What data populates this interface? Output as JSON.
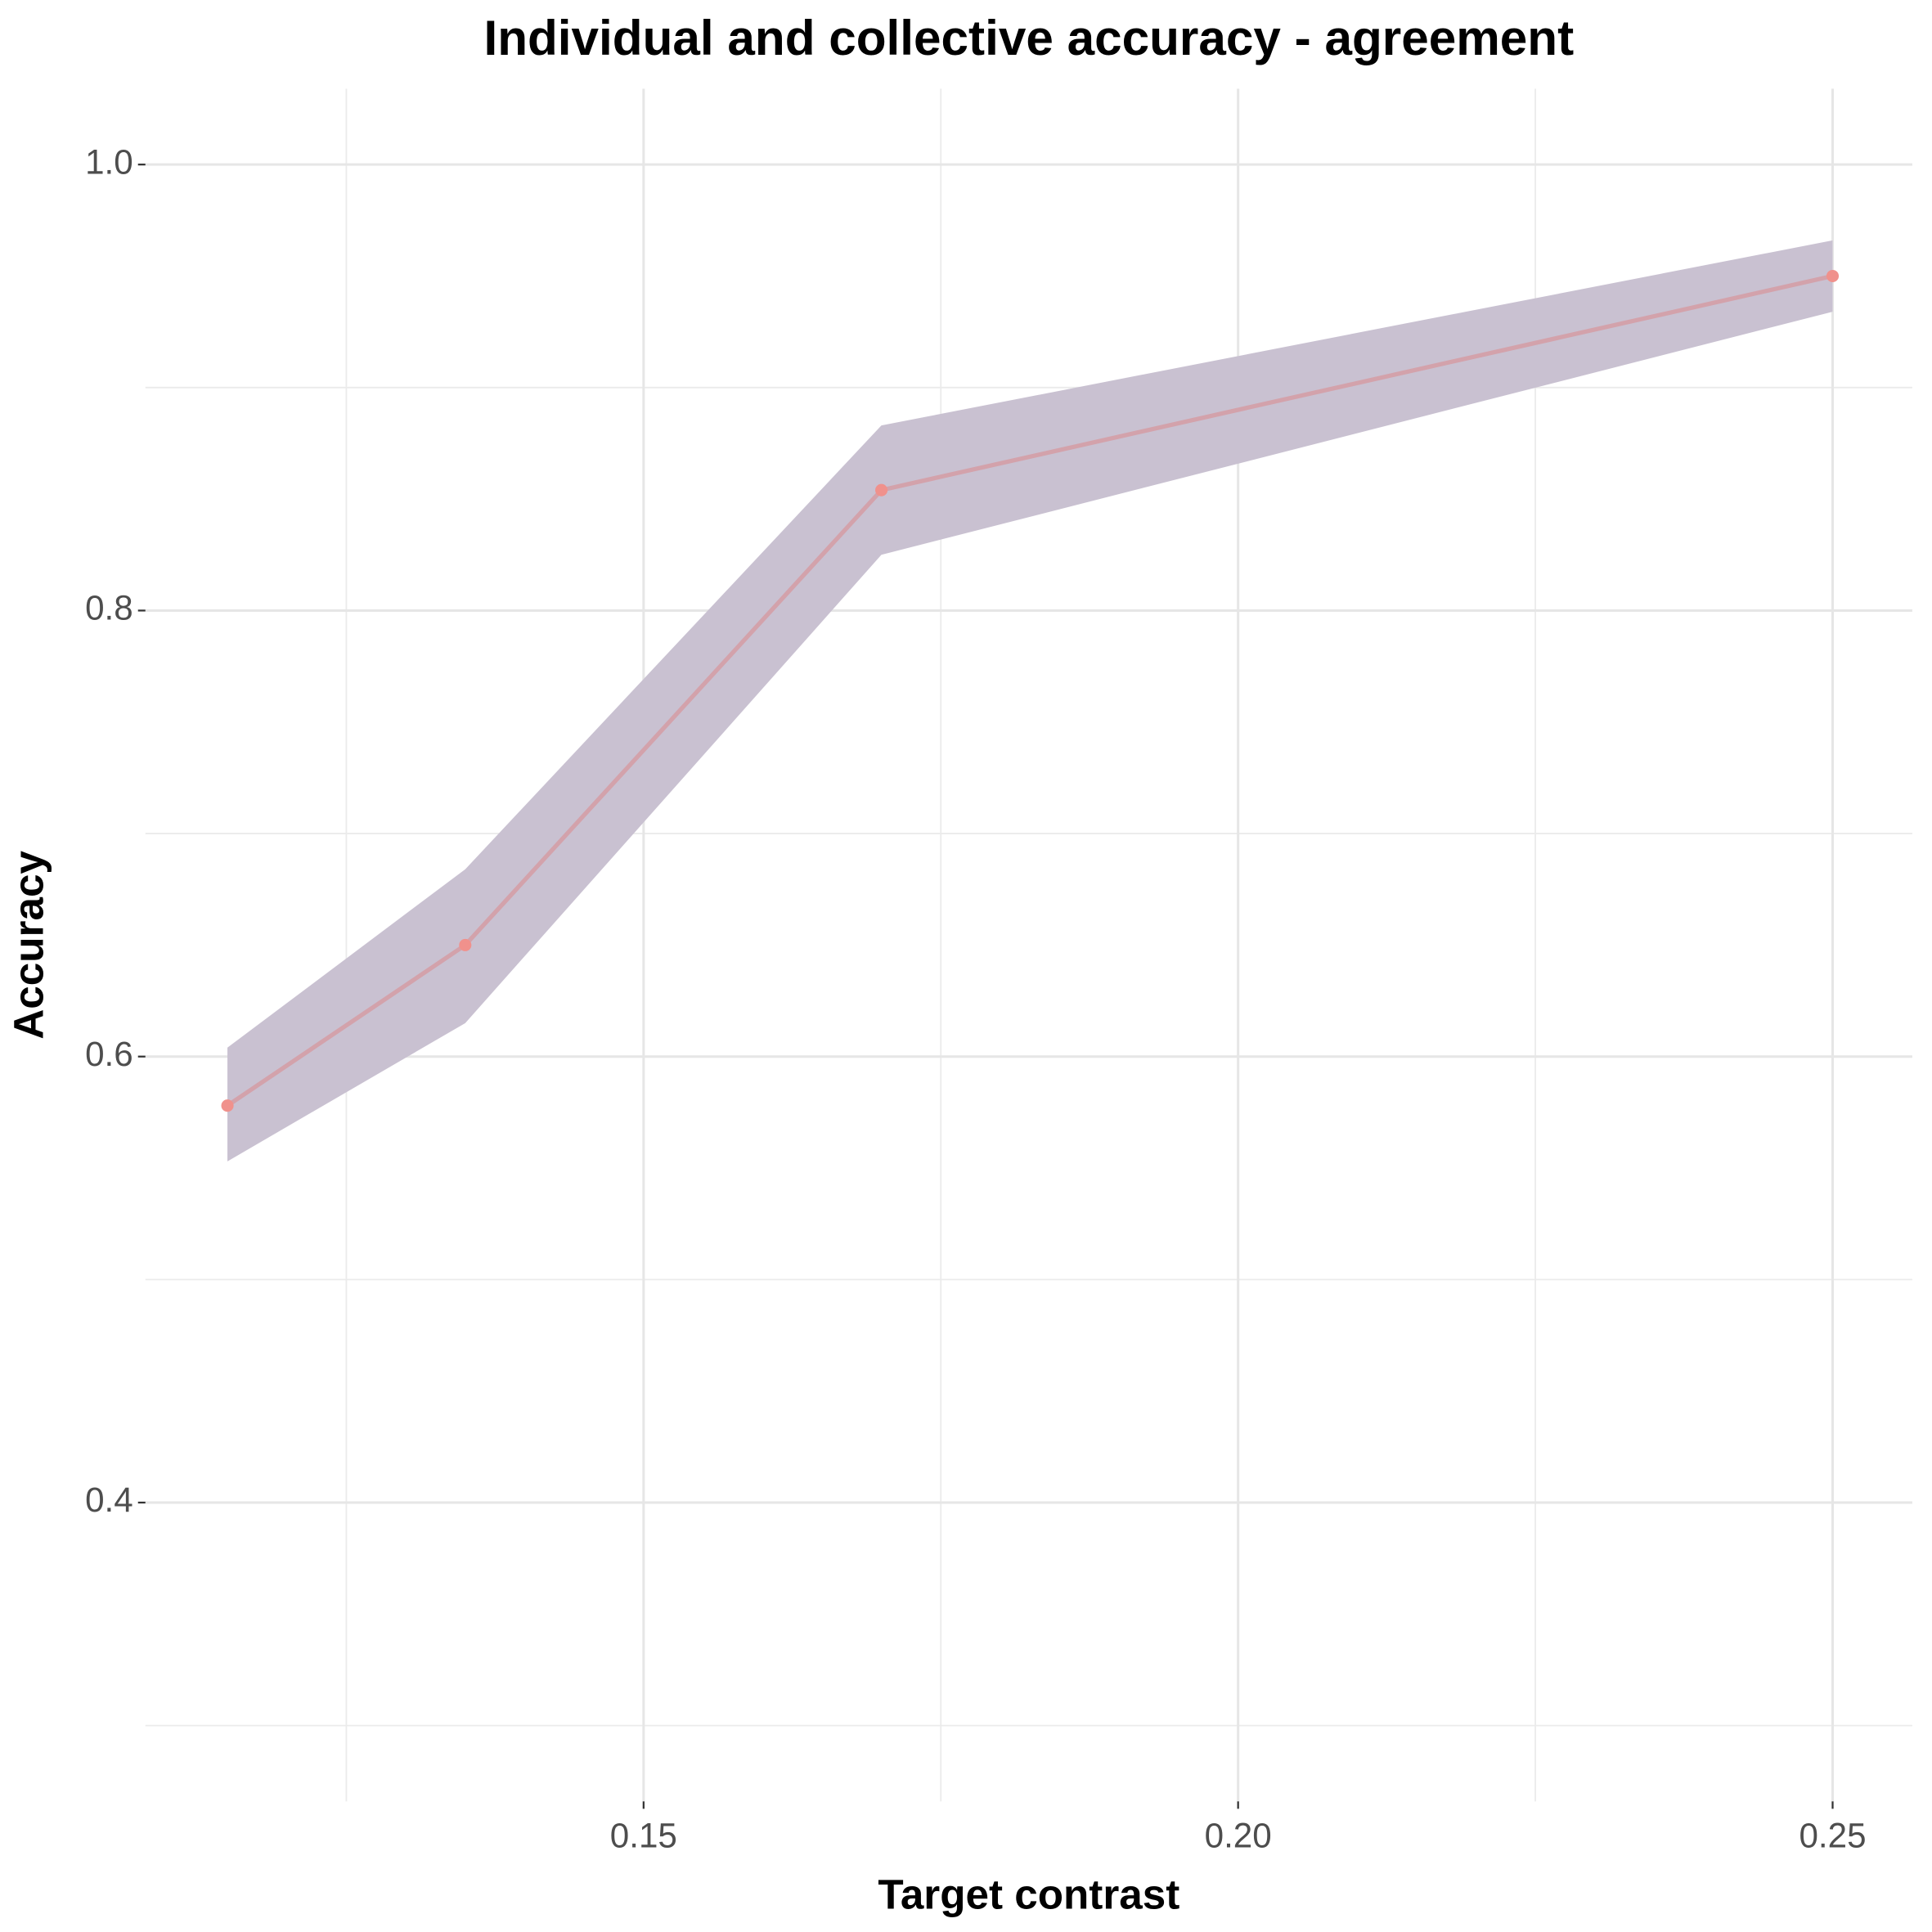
{
  "chart_data": {
    "type": "line",
    "title": "Individual and collective accuracy - agreement",
    "x_label": "Target contrast",
    "y_label": "Accuracy",
    "x": [
      0.115,
      0.135,
      0.17,
      0.25
    ],
    "series": [
      {
        "values": [
          0.578,
          0.65,
          0.854,
          0.95
        ],
        "lower": [
          0.553,
          0.615,
          0.825,
          0.934
        ],
        "upper": [
          0.604,
          0.684,
          0.883,
          0.966
        ],
        "color": "#d3a2ab",
        "point_color": "#f0918c",
        "band_color": "#c9c1d1"
      }
    ],
    "xlim": [
      0.1081,
      0.2567
    ],
    "ylim": [
      0.266,
      1.034
    ],
    "xticks": [
      0.15,
      {
        "value": 0.2,
        "label": "0.20"
      },
      0.25
    ],
    "yticks": [
      0.4,
      0.6,
      0.8,
      {
        "value": 1,
        "label": "1.0"
      }
    ],
    "x_minor_grid": [
      0.125,
      0.175,
      0.225
    ],
    "y_minor_grid": [
      0.3,
      0.5,
      0.7,
      0.9
    ],
    "grid": true
  }
}
